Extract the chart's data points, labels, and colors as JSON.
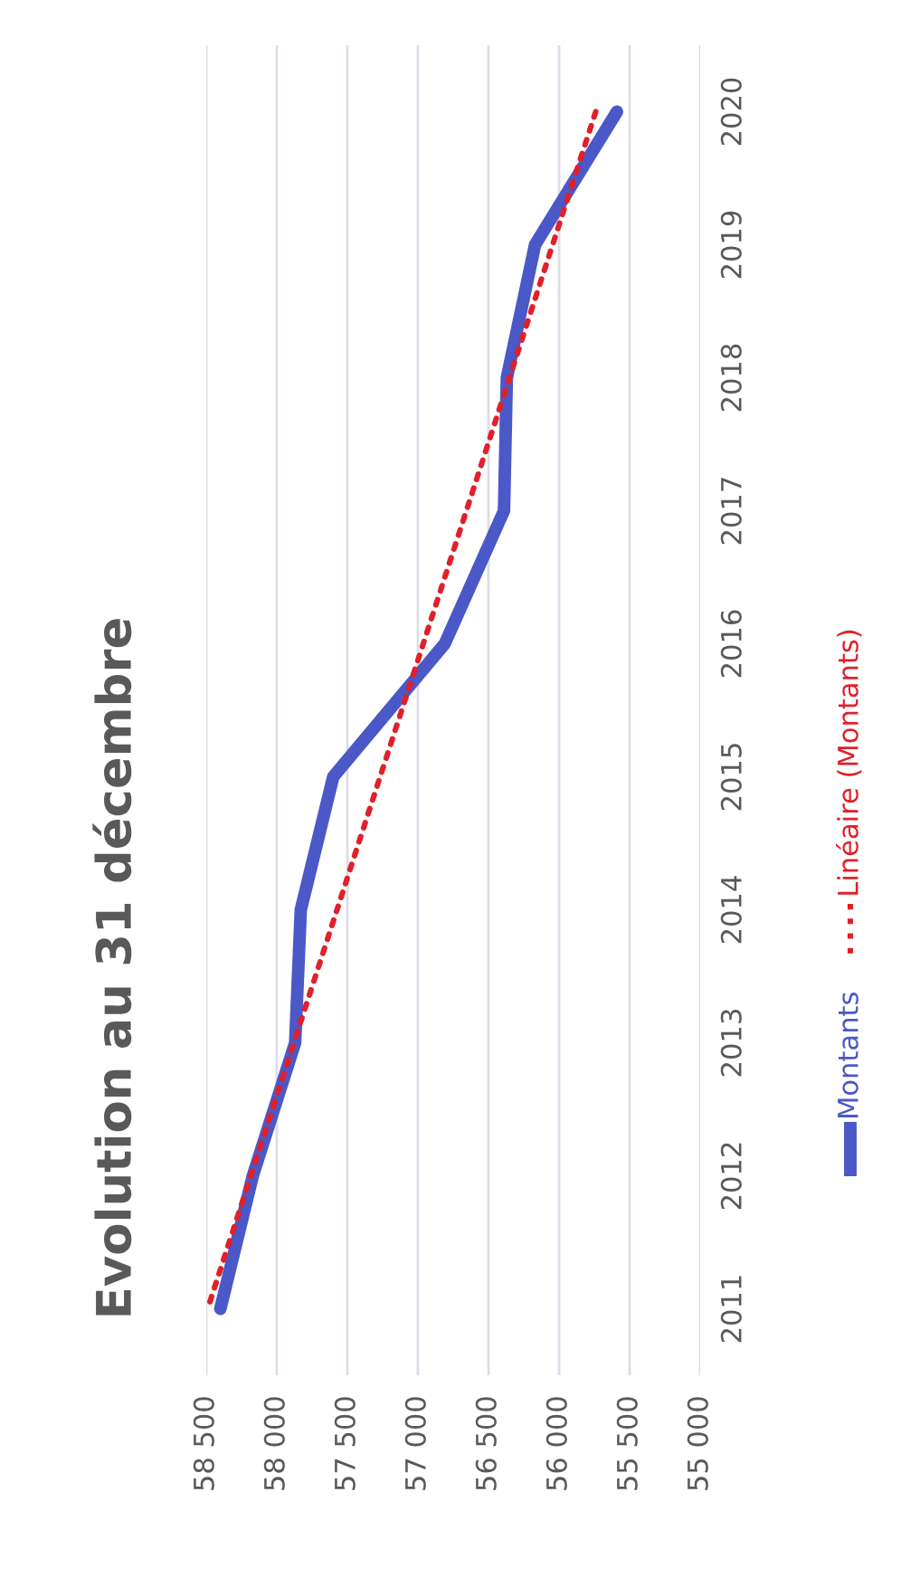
{
  "chart_data": {
    "type": "line",
    "title": "Evolution au 31 décembre",
    "orientation": "horizontal",
    "categories": [
      "2020",
      "2019",
      "2018",
      "2017",
      "2016",
      "2015",
      "2014",
      "2013",
      "2012",
      "2011"
    ],
    "series": [
      {
        "name": "Montants",
        "color": "#4a58c8",
        "values": [
          55590,
          56170,
          56370,
          56390,
          56810,
          57600,
          57830,
          57870,
          58170,
          58400
        ],
        "line_style": "solid"
      },
      {
        "name": "Linéaire (Montants)",
        "color": "#e0202a",
        "values": [
          55740,
          null,
          null,
          null,
          null,
          null,
          null,
          null,
          null,
          58490
        ],
        "line_style": "dotted"
      }
    ],
    "xlim": [
      58500,
      55000
    ],
    "xticks": [
      {
        "value": 58500,
        "label": "58 500"
      },
      {
        "value": 58000,
        "label": "58 000"
      },
      {
        "value": 57500,
        "label": "57 500"
      },
      {
        "value": 57000,
        "label": "57 000"
      },
      {
        "value": 56500,
        "label": "56 500"
      },
      {
        "value": 56000,
        "label": "56 000"
      },
      {
        "value": 55500,
        "label": "55 500"
      },
      {
        "value": 55000,
        "label": "55 000"
      }
    ],
    "grid": "x",
    "legend": "right",
    "marker": "none"
  }
}
